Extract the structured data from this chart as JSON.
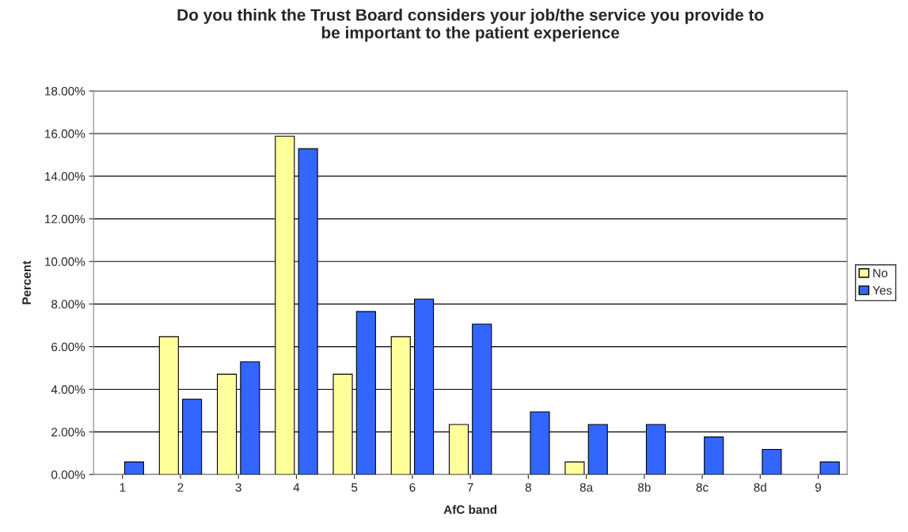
{
  "chart_data": {
    "type": "bar",
    "title": "Do you think the Trust Board considers your job/the service you provide to\nbe important to the patient experience",
    "xlabel": "AfC band",
    "ylabel": "Percent",
    "categories": [
      "1",
      "2",
      "3",
      "4",
      "5",
      "6",
      "7",
      "8",
      "8a",
      "8b",
      "8c",
      "8d",
      "9"
    ],
    "series": [
      {
        "name": "No",
        "color": "#ffff99",
        "values": [
          null,
          6.47,
          4.71,
          15.88,
          4.71,
          6.47,
          2.35,
          null,
          0.59,
          null,
          null,
          null,
          null
        ]
      },
      {
        "name": "Yes",
        "color": "#3366ff",
        "values": [
          0.59,
          3.53,
          5.29,
          15.29,
          7.65,
          8.24,
          7.06,
          2.94,
          2.35,
          2.35,
          1.76,
          1.18,
          0.59
        ]
      }
    ],
    "ylim": [
      0,
      18
    ],
    "yticks": [
      {
        "value": 0,
        "label": "0.00%"
      },
      {
        "value": 2,
        "label": "2.00%"
      },
      {
        "value": 4,
        "label": "4.00%"
      },
      {
        "value": 6,
        "label": "6.00%"
      },
      {
        "value": 8,
        "label": "8.00%"
      },
      {
        "value": 10,
        "label": "10.00%"
      },
      {
        "value": 12,
        "label": "12.00%"
      },
      {
        "value": 14,
        "label": "14.00%"
      },
      {
        "value": 16,
        "label": "16.00%"
      },
      {
        "value": 18,
        "label": "18.00%"
      }
    ],
    "grid": "y",
    "legend": "right"
  }
}
